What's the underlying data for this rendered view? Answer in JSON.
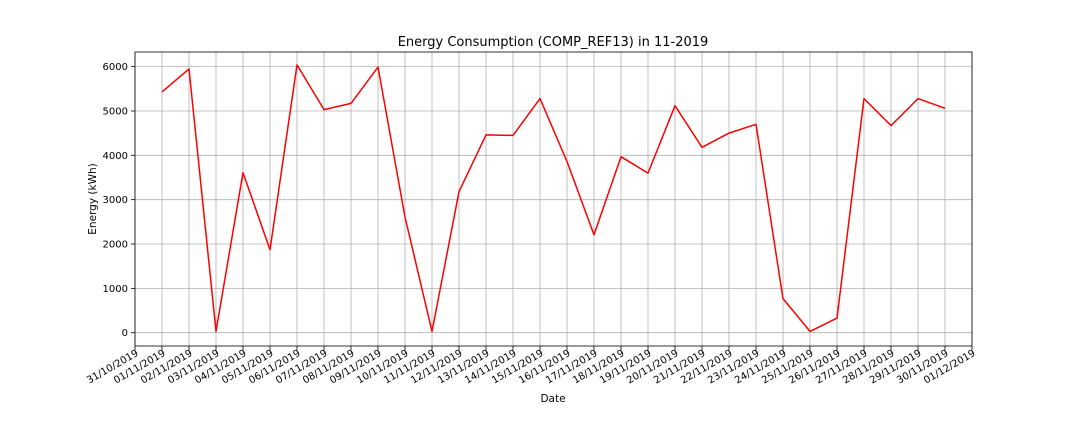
{
  "chart_data": {
    "type": "line",
    "title": "Energy Consumption (COMP_REF13) in 11-2019",
    "xlabel": "Date",
    "ylabel": "Energy (kWh)",
    "x_tick_labels": [
      "31/10/2019",
      "01/11/2019",
      "02/11/2019",
      "03/11/2019",
      "04/11/2019",
      "05/11/2019",
      "06/11/2019",
      "07/11/2019",
      "08/11/2019",
      "09/11/2019",
      "10/11/2019",
      "11/11/2019",
      "12/11/2019",
      "13/11/2019",
      "14/11/2019",
      "15/11/2019",
      "16/11/2019",
      "17/11/2019",
      "18/11/2019",
      "19/11/2019",
      "20/11/2019",
      "21/11/2019",
      "22/11/2019",
      "23/11/2019",
      "24/11/2019",
      "25/11/2019",
      "26/11/2019",
      "27/11/2019",
      "28/11/2019",
      "29/11/2019",
      "30/11/2019",
      "01/12/2019"
    ],
    "xlim": [
      "31/10/2019",
      "01/12/2019"
    ],
    "y_ticks": [
      0,
      1000,
      2000,
      3000,
      4000,
      5000,
      6000
    ],
    "ylim": [
      -300,
      6330
    ],
    "grid": true,
    "line_color": "#ff0000",
    "series": [
      {
        "x": [
          "01/11/2019",
          "02/11/2019",
          "03/11/2019",
          "04/11/2019",
          "05/11/2019",
          "06/11/2019",
          "07/11/2019",
          "08/11/2019",
          "09/11/2019",
          "10/11/2019",
          "11/11/2019",
          "12/11/2019",
          "13/11/2019",
          "14/11/2019",
          "15/11/2019",
          "16/11/2019",
          "17/11/2019",
          "18/11/2019",
          "19/11/2019",
          "20/11/2019",
          "21/11/2019",
          "22/11/2019",
          "23/11/2019",
          "24/11/2019",
          "25/11/2019",
          "26/11/2019",
          "27/11/2019",
          "28/11/2019",
          "29/11/2019",
          "30/11/2019"
        ],
        "values": [
          5430,
          5950,
          30,
          3610,
          1870,
          6040,
          5030,
          5170,
          5990,
          2610,
          30,
          3180,
          4460,
          4450,
          5280,
          3860,
          2210,
          3970,
          3600,
          5120,
          4180,
          4500,
          4700,
          770,
          30,
          330,
          5280,
          4670,
          5280,
          5060
        ]
      }
    ]
  }
}
